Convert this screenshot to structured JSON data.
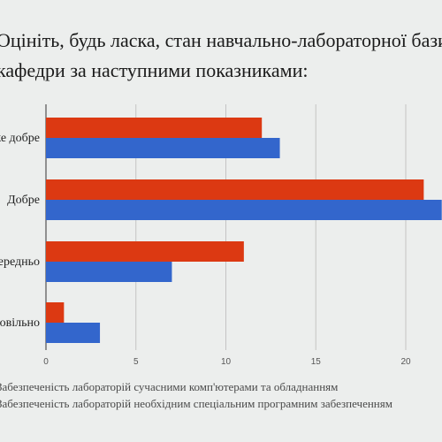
{
  "slide": {
    "title_line1": "Оцініть, будь ласка, стан навчально-лабораторної бази",
    "title_line2": "кафедри за наступними показниками:"
  },
  "chart_data": {
    "type": "bar",
    "orientation": "horizontal",
    "categories": [
      "Дуже добре",
      "Добре",
      "Задовільно / Посередньо",
      "Незадовільно"
    ],
    "series": [
      {
        "name": "Забезпеченість лабораторій сучасними комп'ютерами та обладнанням",
        "values": [
          12,
          21,
          11,
          1
        ],
        "color": "#dc3912"
      },
      {
        "name": "Забезпеченість лабораторій необхідним спеціальним програмним забезпеченням",
        "values": [
          13,
          22,
          7,
          3
        ],
        "color": "#3366cc"
      }
    ],
    "xlim": [
      0,
      22
    ],
    "xticks": [
      0,
      5,
      10,
      15,
      20
    ],
    "grid": true,
    "legend_position": "bottom"
  }
}
